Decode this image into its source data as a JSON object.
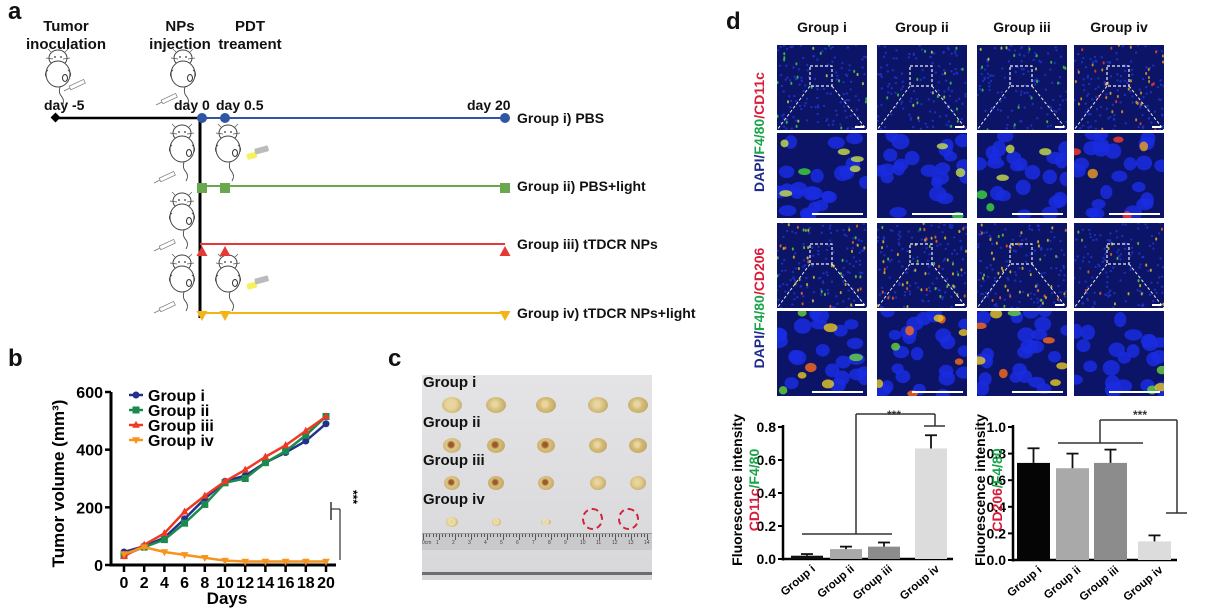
{
  "panels": {
    "a": {
      "letter": "a",
      "stages": [
        {
          "title_line1": "Tumor",
          "title_line2": "inoculation",
          "day": "day -5"
        },
        {
          "title_line1": "NPs",
          "title_line2": "injection",
          "day": "day 0"
        },
        {
          "title_line1": "PDT",
          "title_line2": "treament",
          "day": "day 0.5"
        }
      ],
      "end_day": "day 20",
      "groups": [
        {
          "label": "Group i) PBS",
          "color": "#2f55a4",
          "marker": "circle",
          "light": false
        },
        {
          "label": "Group ii) PBS+light",
          "color": "#6aa84f",
          "marker": "square",
          "light": true
        },
        {
          "label": "Group iii) tTDCR NPs",
          "color": "#e53935",
          "marker": "triangle-up",
          "light": false
        },
        {
          "label": "Group iv) tTDCR NPs+light",
          "color": "#f2b518",
          "marker": "triangle-down",
          "light": true
        }
      ],
      "timeline_color": "#000000"
    },
    "b": {
      "letter": "b",
      "significance": "***"
    },
    "c": {
      "letter": "c",
      "row_labels": [
        "Group i",
        "Group ii",
        "Group iii",
        "Group iv"
      ],
      "tumors_per_row": [
        5,
        5,
        5,
        3
      ],
      "missing_marked": 2,
      "ruler_labels": [
        "0cm",
        "1",
        "2",
        "3",
        "4",
        "5",
        "6",
        "7",
        "8",
        "9",
        "10",
        "11",
        "12",
        "13",
        "14"
      ]
    },
    "d": {
      "letter": "d",
      "column_titles": [
        "Group i",
        "Group ii",
        "Group iii",
        "Group iv"
      ],
      "row_stains": [
        {
          "parts": [
            {
              "text": "DAPI/",
              "color": "#1f2a8c"
            },
            {
              "text": "F4/80",
              "color": "#1aa34a"
            },
            {
              "text": "/CD11c",
              "color": "#d81b3a"
            }
          ]
        },
        {
          "parts": [
            {
              "text": "DAPI/",
              "color": "#1f2a8c"
            },
            {
              "text": "F4/80",
              "color": "#1aa34a"
            },
            {
              "text": "/CD206",
              "color": "#d81b3a"
            }
          ]
        }
      ],
      "ylabel_line1": "Fluorescence intensity",
      "left_ylabel_parts": [
        {
          "text": "CD11c",
          "color": "#d81b3a"
        },
        {
          "text": "/F4/80",
          "color": "#1aa34a"
        }
      ],
      "right_ylabel_parts": [
        {
          "text": "CD206",
          "color": "#d81b3a"
        },
        {
          "text": "/F4/80",
          "color": "#1aa34a"
        }
      ]
    }
  },
  "chart_data": [
    {
      "id": "b",
      "type": "line",
      "title": "",
      "xlabel": "Days",
      "ylabel": "Tumor volume (mm³)",
      "x": [
        0,
        2,
        4,
        6,
        8,
        10,
        12,
        14,
        16,
        18,
        20
      ],
      "xticks": [
        0,
        2,
        4,
        6,
        8,
        10,
        12,
        14,
        16,
        18,
        20
      ],
      "yticks": [
        0,
        200,
        400,
        600
      ],
      "xlim": [
        0,
        20
      ],
      "ylim": [
        0,
        600
      ],
      "grid": false,
      "legend_position": "top-left",
      "series": [
        {
          "name": "Group i",
          "color": "#22318a",
          "marker": "circle",
          "values": [
            45,
            65,
            95,
            160,
            230,
            290,
            310,
            355,
            390,
            430,
            490
          ]
        },
        {
          "name": "Group ii",
          "color": "#1b8a4e",
          "marker": "square",
          "values": [
            35,
            62,
            88,
            145,
            210,
            285,
            300,
            355,
            395,
            450,
            515
          ]
        },
        {
          "name": "Group iii",
          "color": "#ee3a24",
          "marker": "triangle-up",
          "values": [
            30,
            70,
            110,
            185,
            240,
            290,
            330,
            375,
            415,
            465,
            515
          ]
        },
        {
          "name": "Group iv",
          "color": "#f7941d",
          "marker": "triangle-down",
          "values": [
            38,
            62,
            45,
            35,
            25,
            15,
            12,
            12,
            12,
            12,
            12
          ]
        }
      ],
      "annotations": [
        {
          "text": "***",
          "between": [
            "Groups i-iii",
            "Group iv"
          ]
        }
      ]
    },
    {
      "id": "d-left",
      "type": "bar",
      "title": "",
      "xlabel": "",
      "ylabel": "Fluorescence intensity CD11c/F4/80",
      "categories": [
        "Group i",
        "Group ii",
        "Group iii",
        "Group iv"
      ],
      "values": [
        0.02,
        0.06,
        0.075,
        0.67
      ],
      "errors": [
        0.01,
        0.015,
        0.025,
        0.08
      ],
      "colors": [
        "#111111",
        "#a9a9a9",
        "#8c8c8c",
        "#dcdcdc"
      ],
      "yticks": [
        0.0,
        0.2,
        0.4,
        0.6,
        0.8
      ],
      "ylim": [
        0,
        0.8
      ],
      "grid": false,
      "annotations": [
        {
          "text": "***",
          "between": [
            "Groups i-iii",
            "Group iv"
          ]
        }
      ]
    },
    {
      "id": "d-right",
      "type": "bar",
      "title": "",
      "xlabel": "",
      "ylabel": "Fluorescence intensity CD206/F4/80",
      "categories": [
        "Group i",
        "Group ii",
        "Group iii",
        "Group iv"
      ],
      "values": [
        0.73,
        0.69,
        0.73,
        0.14
      ],
      "errors": [
        0.11,
        0.11,
        0.1,
        0.045
      ],
      "colors": [
        "#050505",
        "#a9a9a9",
        "#8c8c8c",
        "#dcdcdc"
      ],
      "yticks": [
        0.0,
        0.2,
        0.4,
        0.6,
        0.8,
        1.0
      ],
      "ylim": [
        0,
        1.0
      ],
      "grid": false,
      "annotations": [
        {
          "text": "***",
          "between": [
            "Groups i-iii",
            "Group iv"
          ]
        }
      ]
    }
  ]
}
